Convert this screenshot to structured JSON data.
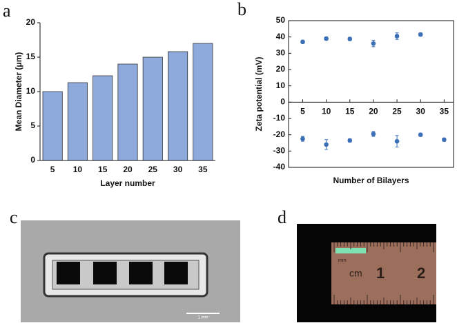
{
  "chart_data": [
    {
      "type": "bar",
      "panel_label": "a",
      "categories": [
        "5",
        "10",
        "15",
        "20",
        "25",
        "30",
        "35"
      ],
      "values": [
        10,
        11.3,
        12.3,
        14,
        15,
        15.8,
        17
      ],
      "color": "#8ea9db",
      "xlabel": "Layer number",
      "ylabel": "Mean Diameter (μm)",
      "ylim": [
        0,
        20
      ],
      "yticks": [
        0,
        5,
        10,
        15,
        20
      ]
    },
    {
      "type": "scatter",
      "panel_label": "b",
      "x": [
        5,
        10,
        15,
        20,
        25,
        30,
        35
      ],
      "series": [
        {
          "color": "#3b6fb6",
          "values": [
            37,
            39,
            38.8,
            36,
            40.5,
            41.5,
            null
          ],
          "errors": [
            1,
            1,
            1,
            2,
            2,
            1,
            null
          ]
        },
        {
          "color": "#3b6fb6",
          "values": [
            -22.5,
            -26,
            -23.5,
            -19.5,
            -24,
            -20,
            -23
          ],
          "errors": [
            1.5,
            3,
            1,
            1.5,
            3.5,
            1,
            1
          ]
        }
      ],
      "xlim": [
        2,
        37
      ],
      "xticks": [
        5,
        10,
        15,
        20,
        25,
        30,
        35
      ],
      "ylim": [
        -40,
        50
      ],
      "yticks": [
        -40,
        -30,
        -20,
        -10,
        0,
        10,
        20,
        30,
        40,
        50
      ],
      "xlabel": "Number of Bilayers",
      "ylabel": "Zeta potential (mV)"
    }
  ],
  "images": [
    {
      "label": "c",
      "scale_bar": "1 mm"
    },
    {
      "label": "d",
      "ruler_unit": "cm",
      "ruler_marks": [
        "1",
        "2"
      ],
      "ruler_small_unit": "mm"
    }
  ]
}
